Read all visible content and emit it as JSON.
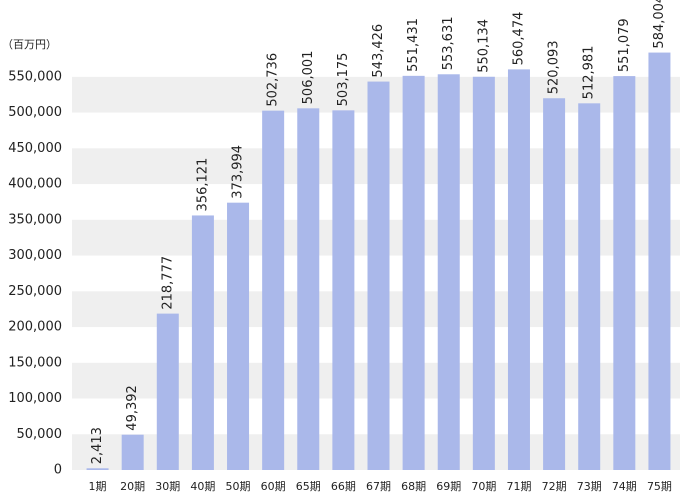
{
  "chart_data": {
    "type": "bar",
    "y_axis_unit": "（百万円）",
    "categories": [
      "1期",
      "20期",
      "30期",
      "40期",
      "50期",
      "60期",
      "65期",
      "66期",
      "67期",
      "68期",
      "69期",
      "70期",
      "71期",
      "72期",
      "73期",
      "74期",
      "75期"
    ],
    "values": [
      2413,
      49392,
      218777,
      356121,
      373994,
      502736,
      506001,
      503175,
      543426,
      551431,
      553631,
      550134,
      560474,
      520093,
      512981,
      551079,
      584004
    ],
    "value_labels": [
      "2,413",
      "49,392",
      "218,777",
      "356,121",
      "373,994",
      "502,736",
      "506,001",
      "503,175",
      "543,426",
      "551,431",
      "553,631",
      "550,134",
      "560,474",
      "520,093",
      "512,981",
      "551,079",
      "584,004"
    ],
    "color": "#aab8ea",
    "ylim": [
      0,
      575000
    ],
    "yticks": [
      0,
      {
        "value": 50000,
        "label": "50,000"
      },
      {
        "value": 100000,
        "label": "100,000"
      },
      {
        "value": 150000,
        "label": "150,000"
      },
      {
        "value": 200000,
        "label": "200,000"
      },
      {
        "value": 250000,
        "label": "250,000"
      },
      {
        "value": 300000,
        "label": "300,000"
      },
      {
        "value": 350000,
        "label": "350,000"
      },
      {
        "value": 400000,
        "label": "400,000"
      },
      {
        "value": 450000,
        "label": "450,000"
      },
      {
        "value": 500000,
        "label": "500,000"
      },
      {
        "value": 550000,
        "label": "550,000"
      }
    ],
    "grid": "bands"
  }
}
